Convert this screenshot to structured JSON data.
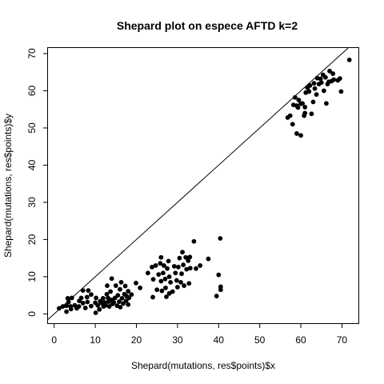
{
  "chart_data": {
    "type": "scatter",
    "title": "Shepard plot on espece AFTD k=2",
    "xlabel": "Shepard(mutations, res$points)$x",
    "ylabel": "Shepard(mutations, res$points)$y",
    "xlim": [
      -1.5,
      74
    ],
    "ylim": [
      -2.5,
      71.5
    ],
    "xticks": [
      0,
      10,
      20,
      30,
      40,
      50,
      60,
      70
    ],
    "yticks": [
      0,
      10,
      20,
      30,
      40,
      50,
      60,
      70
    ],
    "reference_line": {
      "intercept": 0,
      "slope": 1
    },
    "colors": {
      "points": "#000000",
      "line": "#000000"
    },
    "points": [
      [
        1.2,
        1.5
      ],
      [
        2.1,
        2.0
      ],
      [
        3.0,
        2.2
      ],
      [
        3.0,
        0.6
      ],
      [
        3.3,
        4.2
      ],
      [
        3.5,
        3.2
      ],
      [
        4.0,
        2.0
      ],
      [
        4.1,
        1.3
      ],
      [
        4.3,
        4.3
      ],
      [
        5.0,
        2.3
      ],
      [
        5.5,
        1.5
      ],
      [
        6.0,
        2.0
      ],
      [
        6.1,
        3.5
      ],
      [
        6.6,
        4.3
      ],
      [
        7.0,
        2.9
      ],
      [
        7.0,
        6.3
      ],
      [
        7.6,
        1.6
      ],
      [
        8.0,
        4.5
      ],
      [
        8.1,
        3.2
      ],
      [
        8.3,
        6.3
      ],
      [
        9.0,
        2.1
      ],
      [
        9.0,
        5.2
      ],
      [
        10.0,
        3.0
      ],
      [
        10.1,
        0.3
      ],
      [
        10.2,
        4.3
      ],
      [
        10.6,
        2.3
      ],
      [
        11.0,
        1.2
      ],
      [
        11.2,
        3.4
      ],
      [
        11.6,
        2.9
      ],
      [
        11.9,
        4.2
      ],
      [
        12.0,
        2.0
      ],
      [
        12.2,
        3.1
      ],
      [
        12.5,
        2.3
      ],
      [
        12.8,
        5.3
      ],
      [
        12.9,
        7.6
      ],
      [
        13.1,
        4.3
      ],
      [
        13.2,
        3.3
      ],
      [
        13.4,
        2.0
      ],
      [
        13.7,
        6.0
      ],
      [
        14.0,
        9.5
      ],
      [
        14.0,
        3.8
      ],
      [
        14.2,
        2.7
      ],
      [
        14.5,
        3.1
      ],
      [
        14.8,
        4.3
      ],
      [
        15.0,
        7.6
      ],
      [
        15.3,
        2.2
      ],
      [
        15.5,
        5.0
      ],
      [
        15.8,
        3.3
      ],
      [
        16.0,
        6.6
      ],
      [
        16.1,
        1.8
      ],
      [
        16.3,
        8.5
      ],
      [
        16.5,
        4.2
      ],
      [
        16.8,
        2.8
      ],
      [
        17.1,
        5.3
      ],
      [
        17.3,
        7.5
      ],
      [
        17.5,
        3.5
      ],
      [
        17.6,
        4.8
      ],
      [
        18.0,
        6.1
      ],
      [
        18.0,
        2.5
      ],
      [
        18.2,
        4.3
      ],
      [
        18.8,
        5.2
      ],
      [
        19.9,
        8.3
      ],
      [
        20.9,
        7.0
      ],
      [
        22.8,
        11.0
      ],
      [
        23.8,
        12.6
      ],
      [
        24.0,
        4.5
      ],
      [
        24.1,
        9.3
      ],
      [
        24.7,
        13.0
      ],
      [
        25.0,
        6.5
      ],
      [
        25.4,
        10.6
      ],
      [
        25.8,
        13.6
      ],
      [
        26.0,
        15.2
      ],
      [
        26.0,
        8.8
      ],
      [
        26.2,
        6.2
      ],
      [
        26.5,
        11.0
      ],
      [
        26.7,
        13.0
      ],
      [
        27.0,
        9.4
      ],
      [
        27.1,
        7.0
      ],
      [
        27.3,
        4.6
      ],
      [
        27.5,
        12.2
      ],
      [
        27.8,
        14.2
      ],
      [
        28.0,
        10.0
      ],
      [
        28.0,
        5.5
      ],
      [
        28.3,
        8.5
      ],
      [
        28.8,
        6.0
      ],
      [
        29.2,
        12.8
      ],
      [
        29.5,
        11.0
      ],
      [
        29.8,
        9.0
      ],
      [
        30.0,
        7.2
      ],
      [
        30.2,
        12.6
      ],
      [
        30.5,
        15.0
      ],
      [
        30.8,
        8.5
      ],
      [
        31.0,
        10.8
      ],
      [
        31.2,
        16.6
      ],
      [
        31.4,
        13.2
      ],
      [
        31.6,
        7.6
      ],
      [
        32.0,
        15.2
      ],
      [
        32.2,
        12.0
      ],
      [
        32.6,
        14.3
      ],
      [
        32.8,
        8.2
      ],
      [
        33.0,
        15.3
      ],
      [
        33.1,
        12.3
      ],
      [
        34.0,
        19.5
      ],
      [
        34.5,
        12.2
      ],
      [
        35.5,
        13.0
      ],
      [
        37.5,
        14.8
      ],
      [
        39.5,
        4.8
      ],
      [
        40.0,
        10.5
      ],
      [
        40.4,
        20.3
      ],
      [
        40.5,
        6.5
      ],
      [
        40.5,
        7.3
      ],
      [
        56.8,
        52.8
      ],
      [
        57.4,
        53.3
      ],
      [
        58.0,
        51.0
      ],
      [
        58.2,
        56.2
      ],
      [
        58.6,
        58.2
      ],
      [
        59.0,
        48.5
      ],
      [
        59.0,
        56.0
      ],
      [
        59.3,
        55.5
      ],
      [
        59.5,
        57.5
      ],
      [
        60.0,
        48.0
      ],
      [
        60.0,
        56.5
      ],
      [
        60.4,
        56.6
      ],
      [
        60.8,
        53.3
      ],
      [
        61.0,
        54.0
      ],
      [
        61.0,
        55.6
      ],
      [
        61.2,
        59.5
      ],
      [
        61.6,
        60.8
      ],
      [
        62.0,
        59.8
      ],
      [
        62.2,
        61.4
      ],
      [
        62.6,
        53.8
      ],
      [
        63.0,
        57.0
      ],
      [
        63.2,
        62.0
      ],
      [
        63.4,
        60.6
      ],
      [
        63.8,
        59.0
      ],
      [
        64.0,
        63.4
      ],
      [
        64.4,
        61.8
      ],
      [
        64.8,
        63.2
      ],
      [
        65.0,
        62.2
      ],
      [
        65.4,
        64.3
      ],
      [
        65.6,
        60.0
      ],
      [
        66.0,
        63.6
      ],
      [
        66.2,
        56.6
      ],
      [
        66.5,
        61.8
      ],
      [
        66.8,
        62.4
      ],
      [
        67.0,
        65.3
      ],
      [
        67.5,
        62.6
      ],
      [
        67.8,
        64.6
      ],
      [
        68.0,
        63.0
      ],
      [
        69.0,
        62.8
      ],
      [
        69.5,
        63.3
      ],
      [
        69.8,
        59.8
      ],
      [
        71.8,
        68.3
      ]
    ]
  }
}
